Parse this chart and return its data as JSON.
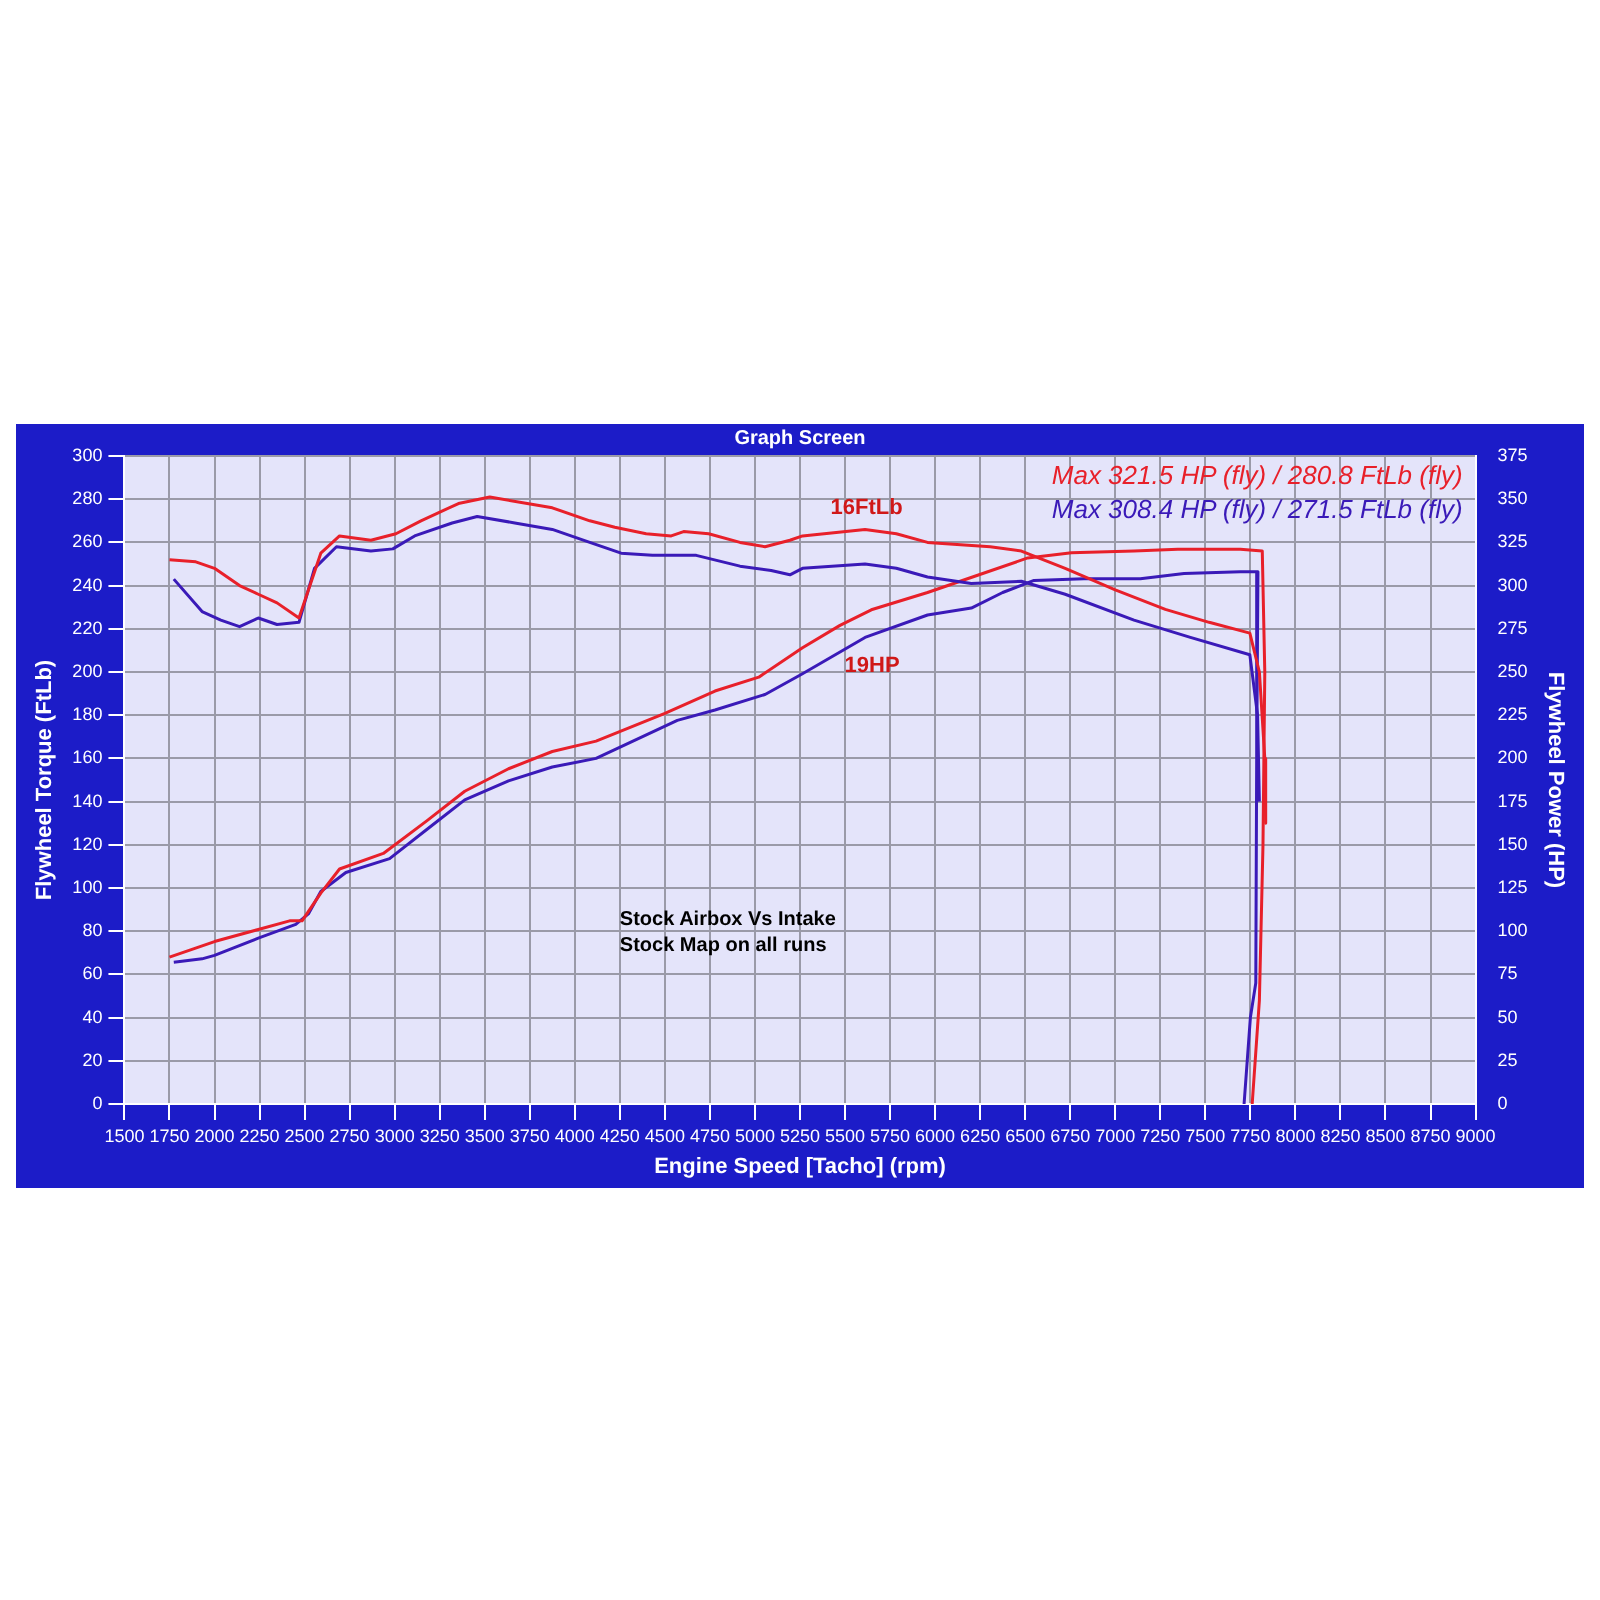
{
  "chart_data": {
    "type": "line",
    "title": "Graph Screen",
    "xlabel": "Engine Speed [Tacho] (rpm)",
    "ylabel": "Flywheel Torque (FtLb)",
    "y2label": "Flywheel Power (HP)",
    "xlim": [
      1500,
      9000
    ],
    "xticks": [
      1500,
      1750,
      2000,
      2250,
      2500,
      2750,
      3000,
      3250,
      3500,
      3750,
      4000,
      4250,
      4500,
      4750,
      5000,
      5250,
      5500,
      5750,
      6000,
      6250,
      6500,
      6750,
      7000,
      7250,
      7500,
      7750,
      8000,
      8250,
      8500,
      8750,
      9000
    ],
    "ylim": [
      0,
      300
    ],
    "yticks": [
      0,
      20,
      40,
      60,
      80,
      100,
      120,
      140,
      160,
      180,
      200,
      220,
      240,
      260,
      280,
      300
    ],
    "y2lim": [
      0,
      375
    ],
    "y2ticks": [
      0,
      25,
      50,
      75,
      100,
      125,
      150,
      175,
      200,
      225,
      250,
      275,
      300,
      325,
      350,
      375
    ],
    "grid": true,
    "legend": "top right",
    "series": [
      {
        "name": "Max 321.5 HP (fly) / 280.8 FtLb (fly)",
        "color": "#e8202a",
        "x": [
          1750,
          1896,
          2000,
          2139,
          2243,
          2347,
          2469,
          2590,
          2694,
          2868,
          3007,
          3146,
          3354,
          3528,
          3736,
          3875,
          4083,
          4222,
          4396,
          4535,
          4604,
          4743,
          4917,
          5056,
          5194,
          5264,
          5611,
          5785,
          5958,
          6306,
          6479,
          6722,
          7000,
          7278,
          7521,
          7747,
          7800,
          7830,
          7835
        ],
        "values": [
          252,
          251,
          248,
          240,
          236,
          232,
          225,
          255,
          263,
          261,
          264,
          270,
          278,
          281,
          278,
          276,
          270,
          267,
          264,
          263,
          265,
          264,
          260,
          258,
          261,
          263,
          266,
          264,
          260,
          258,
          256,
          248,
          238,
          229,
          223,
          218,
          200,
          160,
          130
        ]
      },
      {
        "name": "Max 308.4 HP (fly) / 271.5 FtLb (fly)",
        "color": "#3a1ab8",
        "x": [
          1774,
          1931,
          2035,
          2139,
          2243,
          2347,
          2469,
          2555,
          2677,
          2868,
          2990,
          3111,
          3319,
          3458,
          3667,
          3875,
          4083,
          4257,
          4431,
          4674,
          4917,
          5090,
          5194,
          5264,
          5611,
          5785,
          5958,
          6201,
          6479,
          6722,
          7104,
          7417,
          7747,
          7790,
          7800
        ],
        "values": [
          243,
          228,
          224,
          221,
          225,
          222,
          223,
          248,
          258,
          256,
          257,
          263,
          269,
          272,
          269,
          266,
          260,
          255,
          254,
          254,
          249,
          247,
          245,
          248,
          250,
          248,
          244,
          241,
          242,
          236,
          224,
          216,
          208,
          180,
          140
        ]
      },
      {
        "color": "#e8202a",
        "axis": "y2",
        "x": [
          1750,
          2000,
          2243,
          2417,
          2486,
          2590,
          2694,
          2937,
          3180,
          3389,
          3632,
          3875,
          4118,
          4500,
          4778,
          5021,
          5264,
          5472,
          5646,
          5958,
          6236,
          6514,
          6757,
          7104,
          7347,
          7694,
          7816,
          7830,
          7820,
          7800,
          7760
        ],
        "values": [
          85,
          94,
          101,
          106,
          106,
          122,
          136,
          145,
          164,
          181,
          194,
          204,
          210,
          226,
          239,
          247,
          264,
          277,
          286,
          296,
          306,
          316,
          319,
          320,
          321,
          321,
          320,
          250,
          150,
          60,
          0
        ]
      },
      {
        "color": "#3a1ab8",
        "axis": "y2",
        "x": [
          1774,
          1931,
          2000,
          2243,
          2451,
          2521,
          2590,
          2729,
          2972,
          3180,
          3389,
          3632,
          3875,
          4118,
          4569,
          4778,
          5056,
          5264,
          5611,
          5958,
          6201,
          6375,
          6549,
          6826,
          7139,
          7382,
          7694,
          7792,
          7785,
          7780,
          7750,
          7715
        ],
        "values": [
          82,
          84,
          86,
          96,
          104,
          110,
          123,
          134,
          142,
          159,
          176,
          187,
          195,
          200,
          222,
          228,
          237,
          249,
          270,
          283,
          287,
          296,
          303,
          304,
          304,
          307,
          308,
          308,
          200,
          70,
          50,
          0
        ]
      }
    ],
    "annotations": [
      "16FtLb",
      "19HP",
      "Stock Airbox Vs Intake",
      "Stock Map on all runs"
    ]
  }
}
